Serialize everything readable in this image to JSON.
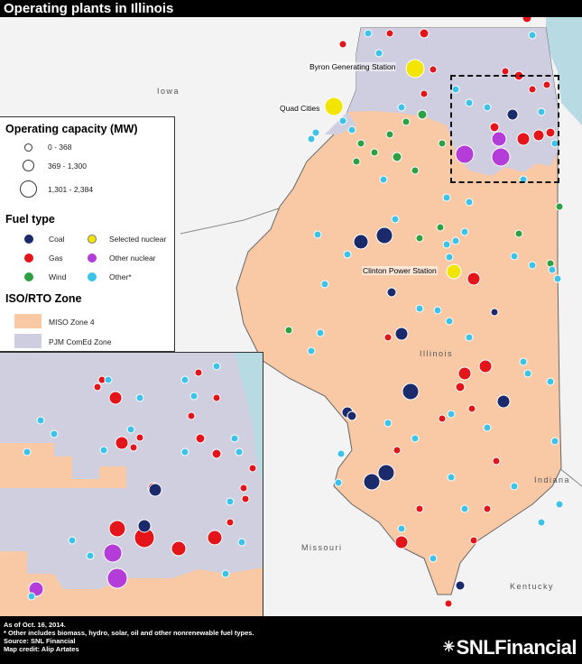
{
  "title": "Operating plants in Illinois",
  "labels": {
    "iowa": "Iowa",
    "illinois": "Illinois",
    "indiana": "Indiana",
    "missouri": "Missouri",
    "kentucky": "Kentucky",
    "byron": "Byron Generating Station",
    "quad_cities": "Quad Cities",
    "clinton": "Clinton Power Station"
  },
  "legend": {
    "capacity_title": "Operating capacity (MW)",
    "capacity": [
      "0 - 368",
      "369 - 1,300",
      "1,301 - 2,384"
    ],
    "fuel_title": "Fuel type",
    "fuel": {
      "coal": "Coal",
      "selected_nuclear": "Selected nuclear",
      "gas": "Gas",
      "other_nuclear": "Other nuclear",
      "wind": "Wind",
      "other": "Other*"
    },
    "zone_title": "ISO/RTO Zone",
    "zones": {
      "miso": "MISO Zone 4",
      "pjm": "PJM ComEd Zone"
    }
  },
  "colors": {
    "coal": "#1b2a6b",
    "gas": "#e3141a",
    "wind": "#2ea043",
    "selected_nuclear": "#f2e500",
    "other_nuclear": "#b43cd8",
    "other": "#3ec3e8",
    "miso": "#f9c9a6",
    "pjm": "#cfcde0",
    "lake": "#b8dbe3"
  },
  "footer": {
    "date": "As of Oct. 16, 2014.",
    "note": "* Other includes biomass, hydro, solar, oil and other nonrenewable fuel types.",
    "source": "Source: SNL Financial",
    "credit": "Map credit: Alip Artates",
    "brand": "SNLFinancial"
  }
}
